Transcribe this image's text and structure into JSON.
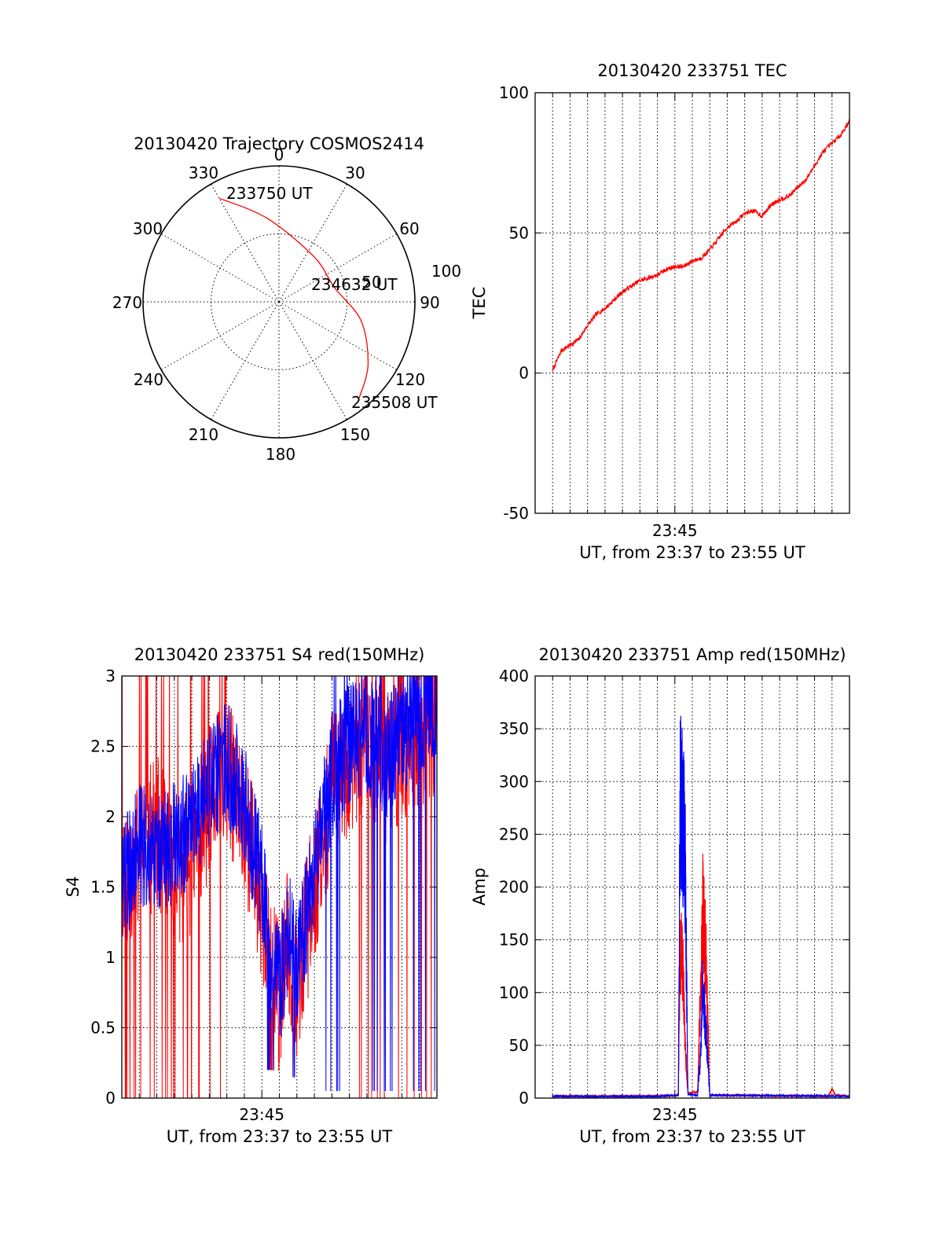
{
  "chart_data": [
    {
      "type": "polar",
      "title": "20130420 Trajectory COSMOS2414",
      "angle_labels": [
        "0",
        "30",
        "60",
        "90",
        "120",
        "150",
        "180",
        "210",
        "240",
        "270",
        "300",
        "330"
      ],
      "radial_labels": [
        "50",
        "100"
      ],
      "rlim": [
        0,
        100
      ],
      "grid": true,
      "series": [
        {
          "color": "#ff0000",
          "points": [
            {
              "az": 330,
              "r": 88
            },
            {
              "az": 352,
              "r": 62
            },
            {
              "az": 38,
              "r": 42
            },
            {
              "az": 75,
              "r": 42
            },
            {
              "az": 103,
              "r": 62
            },
            {
              "az": 125,
              "r": 80
            },
            {
              "az": 140,
              "r": 92
            }
          ]
        }
      ],
      "annotations": [
        {
          "text": "233750 UT",
          "az": 330,
          "r": 88
        },
        {
          "text": "234632 UT",
          "az": 75,
          "r": 42
        },
        {
          "text": "235508 UT",
          "az": 140,
          "r": 92
        }
      ]
    },
    {
      "type": "line",
      "title": "20130420 233751 TEC",
      "xlabel": "UT, from 23:37 to 23:55 UT",
      "ylabel": "TEC",
      "xlim_minutes": [
        37,
        55
      ],
      "x_tick_labels": [
        {
          "minute": 45,
          "label": "23:45"
        }
      ],
      "ylim": [
        -50,
        100
      ],
      "y_ticks": [
        "-50",
        "0",
        "50",
        "100"
      ],
      "grid": true,
      "series": [
        {
          "color": "#ff0000",
          "x_minutes": [
            38,
            38.5,
            39,
            39.5,
            40,
            40.5,
            41,
            41.5,
            42,
            42.5,
            43,
            43.5,
            44,
            44.5,
            45,
            45.5,
            46,
            46.5,
            47,
            47.5,
            48,
            48.5,
            49,
            49.5,
            50,
            50.5,
            51,
            51.5,
            52,
            52.5,
            53,
            53.5,
            54,
            54.5,
            55
          ],
          "values": [
            1,
            8,
            10,
            12,
            17,
            21,
            23,
            26,
            29,
            31,
            33,
            34,
            35,
            37,
            38,
            38,
            40,
            41,
            44,
            48,
            52,
            54,
            57,
            58,
            56,
            60,
            62,
            63,
            66,
            69,
            74,
            79,
            82,
            85,
            90
          ]
        }
      ]
    },
    {
      "type": "line",
      "title": "20130420 233751 S4 red(150MHz)",
      "xlabel": "UT, from 23:37 to 23:55 UT",
      "ylabel": "S4",
      "xlim_minutes": [
        37,
        55
      ],
      "x_tick_labels": [
        {
          "minute": 45,
          "label": "23:45"
        }
      ],
      "ylim": [
        0,
        3
      ],
      "y_ticks": [
        "0",
        "0.5",
        "1",
        "1.5",
        "2",
        "2.5",
        "3"
      ],
      "grid": true,
      "series": [
        {
          "color": "#ff0000",
          "x_minutes": [
            37,
            38,
            39,
            40,
            41,
            42,
            43,
            44,
            45,
            45.5,
            46,
            46.5,
            47,
            48,
            49,
            50,
            51,
            52,
            53,
            54,
            55
          ],
          "values": [
            1.6,
            1.7,
            1.9,
            1.6,
            1.7,
            2.1,
            2.3,
            2.0,
            1.4,
            0.9,
            0.7,
            1.1,
            0.8,
            1.5,
            2.2,
            2.4,
            2.6,
            2.3,
            2.5,
            2.6,
            2.7
          ]
        },
        {
          "color": "#0000ff",
          "x_minutes": [
            37,
            38,
            39,
            40,
            41,
            42,
            43,
            44,
            45,
            45.5,
            46,
            46.5,
            47,
            48,
            49,
            50,
            51,
            52,
            53,
            54,
            55
          ],
          "values": [
            1.5,
            1.8,
            1.7,
            1.8,
            1.9,
            2.2,
            2.4,
            2.1,
            1.5,
            1.0,
            0.8,
            1.2,
            0.9,
            1.6,
            2.3,
            2.5,
            2.6,
            2.4,
            2.6,
            2.7,
            2.8
          ]
        }
      ]
    },
    {
      "type": "line",
      "title": "20130420 233751 Amp red(150MHz)",
      "xlabel": "UT, from 23:37 to 23:55 UT",
      "ylabel": "Amp",
      "xlim_minutes": [
        37,
        55
      ],
      "x_tick_labels": [
        {
          "minute": 45,
          "label": "23:45"
        }
      ],
      "ylim": [
        0,
        400
      ],
      "y_ticks": [
        "0",
        "50",
        "100",
        "150",
        "200",
        "250",
        "300",
        "350",
        "400"
      ],
      "grid": true,
      "series": [
        {
          "color": "#ff0000",
          "x_minutes": [
            38,
            44,
            45.2,
            45.3,
            45.45,
            45.6,
            45.75,
            46.3,
            46.5,
            46.6,
            46.8,
            47,
            53.8,
            54,
            54.2,
            55
          ],
          "values": [
            1,
            1,
            2,
            180,
            150,
            60,
            4,
            5,
            140,
            220,
            150,
            2,
            1,
            8,
            2,
            1
          ]
        },
        {
          "color": "#0000ff",
          "x_minutes": [
            38,
            44,
            45.2,
            45.3,
            45.45,
            45.55,
            45.75,
            46.3,
            46.5,
            46.6,
            46.8,
            47,
            55
          ],
          "values": [
            1,
            1,
            2,
            335,
            320,
            340,
            3,
            2,
            60,
            130,
            70,
            2,
            1
          ]
        }
      ]
    }
  ]
}
